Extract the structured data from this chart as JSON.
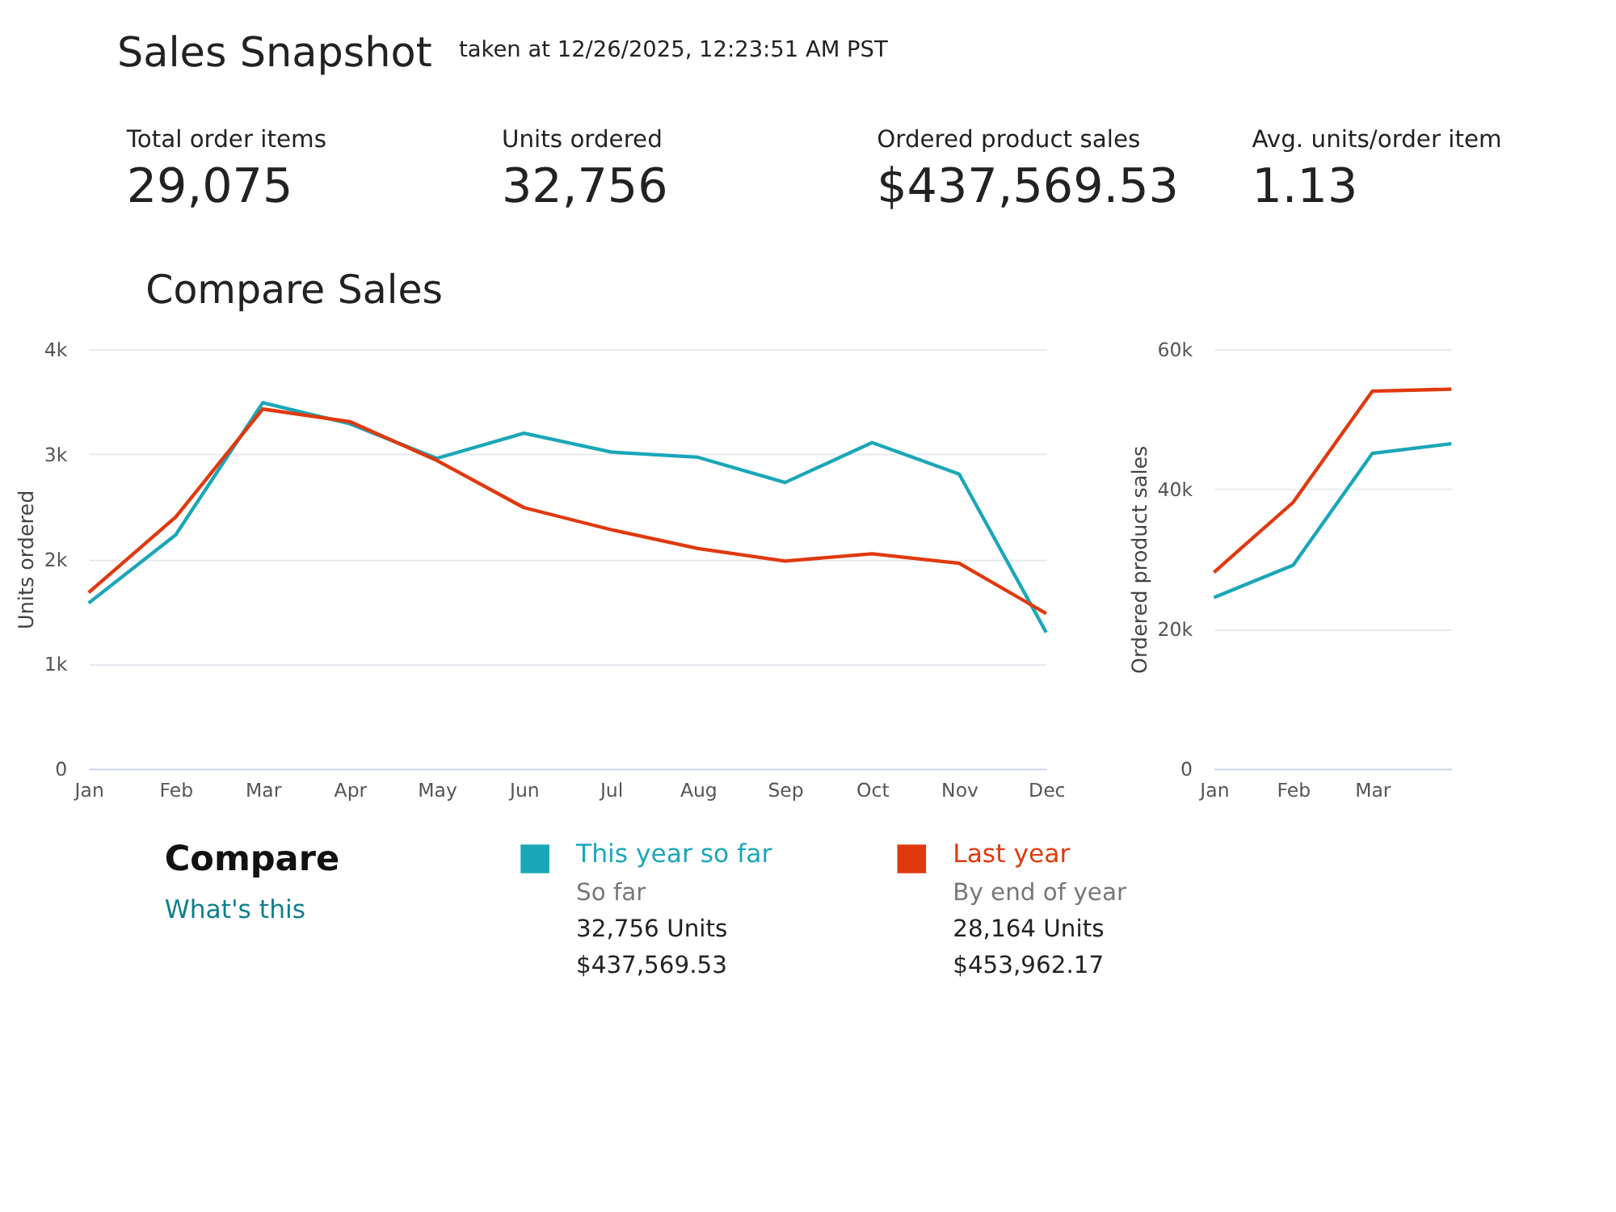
{
  "chart_data": [
    {
      "type": "line",
      "title": "Sales Snapshot",
      "subtitle": "taken at 12/26/2025, 12:23:51 AM PST",
      "ylabel": "Units ordered",
      "legend_title": "Compare",
      "legend": "bottom",
      "grid": "y",
      "line_style": "solid",
      "annotations": [
        "Total order items",
        "29,075",
        "Units ordered",
        "32,756",
        "Ordered product sales",
        "$437,569.53",
        "Avg. units/order item",
        "1.13",
        "Compare Sales",
        "What's this",
        "So far",
        "32,756 Units",
        "$437,569.53",
        "By end of year",
        "28,164 Units",
        "$453,962.17"
      ],
      "categories": [
        "Jan",
        "Feb",
        "Mar",
        "Apr",
        "May",
        "Jun",
        "Jul",
        "Aug",
        "Sep",
        "Oct",
        "Nov",
        "Dec"
      ],
      "ylim": [
        0,
        4000
      ],
      "yticks": [
        0,
        {
          "value": 1000,
          "label": "1k"
        },
        {
          "value": 2000,
          "label": "2k"
        },
        {
          "value": 3000,
          "label": "3k"
        },
        {
          "value": 4000,
          "label": "4k"
        }
      ],
      "series": [
        {
          "name": "This year so far",
          "color": "#1aa7b8",
          "values": [
            1580,
            2230,
            3490,
            3290,
            2960,
            3200,
            3020,
            2970,
            2730,
            3110,
            2810,
            1300
          ]
        },
        {
          "name": "Last year",
          "color": "#e0390e",
          "values": [
            1680,
            2400,
            3430,
            3310,
            2940,
            2490,
            2280,
            2100,
            1980,
            2050,
            1960,
            1480
          ]
        }
      ]
    },
    {
      "type": "line",
      "ylabel": "Ordered product sales",
      "grid": "y",
      "line_style": "solid",
      "categories": [
        "Jan",
        "Feb",
        "Mar",
        null
      ],
      "ylim": [
        0,
        60000
      ],
      "yticks": [
        0,
        {
          "value": 20000,
          "label": "20k"
        },
        {
          "value": 40000,
          "label": "40k"
        },
        {
          "value": 60000,
          "label": "60k"
        }
      ],
      "series": [
        {
          "color": "#1aa7b8",
          "values": [
            24500,
            29100,
            45100,
            46500
          ]
        },
        {
          "color": "#e0390e",
          "values": [
            28100,
            38100,
            54000,
            54300
          ]
        }
      ]
    }
  ]
}
